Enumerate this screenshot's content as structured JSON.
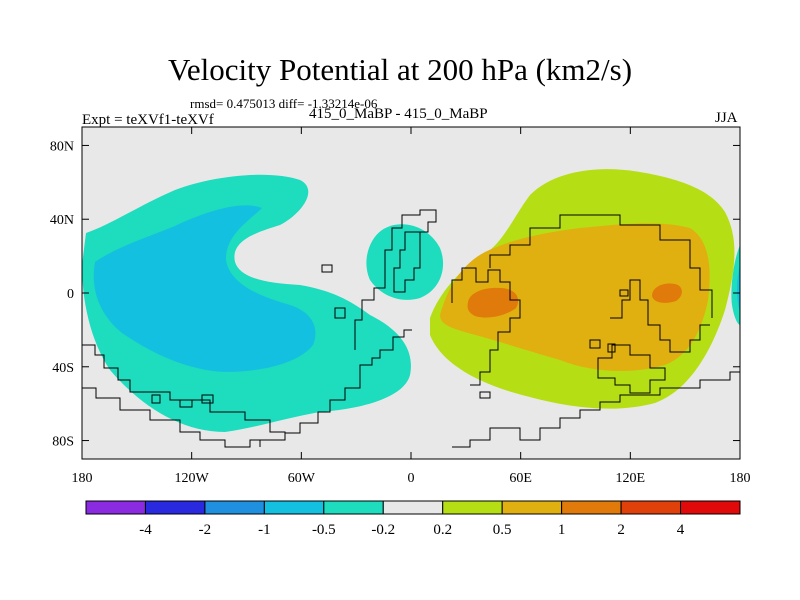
{
  "chart_data": {
    "type": "contour-map",
    "title": "Velocity Potential at 200 hPa (km2/s)",
    "stats_line": "rmsd= 0.475013 diff= -1.33214e-06",
    "expt_label": "Expt = teXVf1-teXVf",
    "runs_label": "415_0_MaBP - 415_0_MaBP",
    "season": "JJA",
    "x_ticks": [
      "180",
      "120W",
      "60W",
      "0",
      "60E",
      "120E",
      "180"
    ],
    "x_tick_values": [
      -180,
      -120,
      -60,
      0,
      60,
      120,
      180
    ],
    "y_ticks": [
      "80N",
      "40N",
      "0",
      "40S",
      "80S"
    ],
    "y_tick_values": [
      80,
      40,
      0,
      -40,
      -80
    ],
    "xlim": [
      -180,
      180
    ],
    "ylim": [
      -90,
      90
    ],
    "colorbar": {
      "colors": [
        "#8a2be2",
        "#2929e0",
        "#1f8fe0",
        "#14c0e0",
        "#1edcbe",
        "#e8e8e8",
        "#b6de14",
        "#e0b010",
        "#e07a0a",
        "#e0400a",
        "#e00a0a"
      ],
      "labels": [
        "-4",
        "-2",
        "-1",
        "-0.5",
        "-0.2",
        "0.2",
        "0.5",
        "1",
        "2",
        "4"
      ]
    },
    "regions": [
      {
        "name": "negative-region-pacific-outer",
        "level_range": "-0.5 to -0.2",
        "color": "#1edcbe"
      },
      {
        "name": "negative-region-pacific-inner",
        "level_range": "-1 to -0.5",
        "color": "#14c0e0"
      },
      {
        "name": "negative-region-atlantic",
        "level_range": "-0.5 to -0.2",
        "color": "#1edcbe"
      },
      {
        "name": "positive-region-outer",
        "level_range": "0.2 to 0.5",
        "color": "#b6de14"
      },
      {
        "name": "positive-region-mid",
        "level_range": "0.5 to 1",
        "color": "#e0b010"
      },
      {
        "name": "positive-region-indian-core",
        "level_range": "1 to 2",
        "color": "#e07a0a"
      },
      {
        "name": "positive-region-pacific-core",
        "level_range": "1 to 2",
        "color": "#e07a0a"
      }
    ]
  }
}
